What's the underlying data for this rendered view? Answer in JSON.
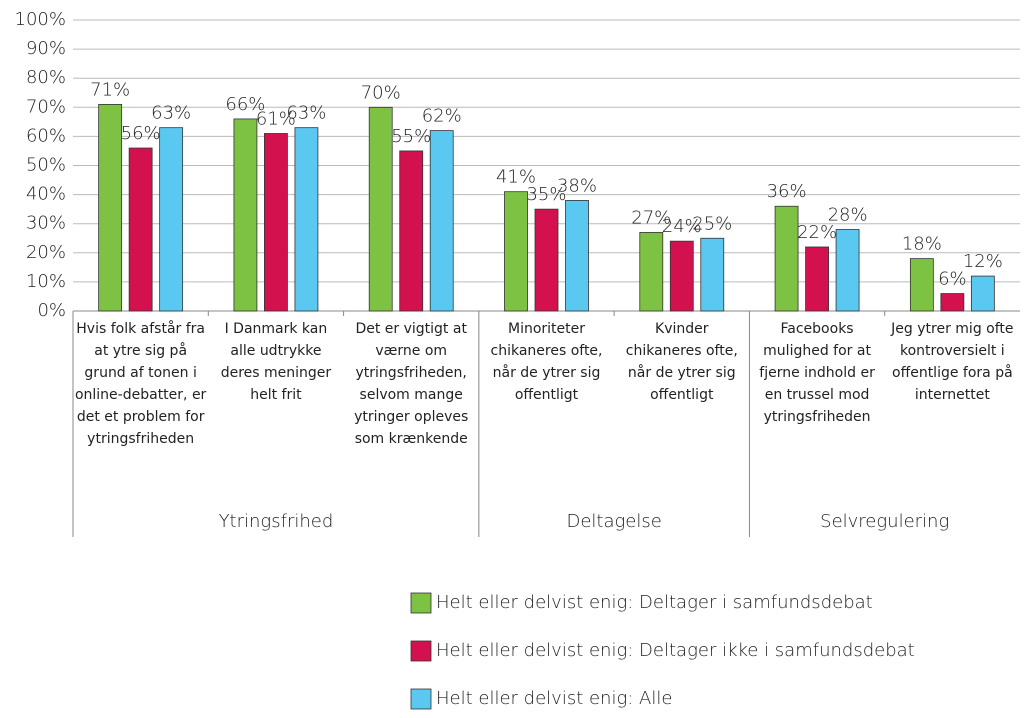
{
  "chart_data": {
    "type": "bar",
    "groups": [
      {
        "name": "Ytringsfrihed",
        "categories": [
          "Hvis folk afstår fra at ytre sig på grund af tonen i online-debatter, er det et problem for ytringsfriheden",
          "I Danmark kan alle udtrykke deres meninger helt frit",
          "Det er vigtigt at værne om ytringsfriheden, selvom mange ytringer opleves som krænkende"
        ]
      },
      {
        "name": "Deltagelse",
        "categories": [
          "Minoriteter chikaneres ofte, når de ytrer sig offentligt",
          "Kvinder chikaneres ofte, når de ytrer sig offentligt"
        ]
      },
      {
        "name": "Selvregulering",
        "categories": [
          "Facebooks mulighed for at fjerne indhold er en trussel mod ytringsfriheden",
          "Jeg ytrer mig ofte kontroversielt i offentlige fora på internettet"
        ]
      }
    ],
    "series": [
      {
        "name": "Helt eller delvist enig: Deltager i samfundsdebat",
        "color": "#7dc242",
        "values": [
          71,
          66,
          70,
          41,
          27,
          36,
          18
        ],
        "value_labels": [
          "71%",
          "66%",
          "70%",
          "41%",
          "27%",
          "36%",
          "18%"
        ]
      },
      {
        "name": "Helt eller delvist enig: Deltager ikke i samfundsdebat",
        "color": "#d4114f",
        "values": [
          56,
          61,
          55,
          35,
          24,
          22,
          6
        ],
        "value_labels": [
          "56%",
          "61%",
          "55%",
          "35%",
          "24%",
          "22%",
          "6%"
        ]
      },
      {
        "name": "Helt eller delvist enig: Alle",
        "color": "#5bc8f2",
        "values": [
          63,
          63,
          62,
          38,
          25,
          28,
          12
        ],
        "value_labels": [
          "63%",
          "63%",
          "62%",
          "38%",
          "25%",
          "28%",
          "12%"
        ]
      }
    ],
    "ylim": [
      0,
      100
    ],
    "yticks": [
      {
        "value": 0,
        "label": "0%"
      },
      {
        "value": 10,
        "label": "10%"
      },
      {
        "value": 20,
        "label": "20%"
      },
      {
        "value": 30,
        "label": "30%"
      },
      {
        "value": 40,
        "label": "40%"
      },
      {
        "value": 50,
        "label": "50%"
      },
      {
        "value": 60,
        "label": "60%"
      },
      {
        "value": 70,
        "label": "70%"
      },
      {
        "value": 80,
        "label": "80%"
      },
      {
        "value": 90,
        "label": "90%"
      },
      {
        "value": 100,
        "label": "100%"
      }
    ],
    "grid": true
  }
}
